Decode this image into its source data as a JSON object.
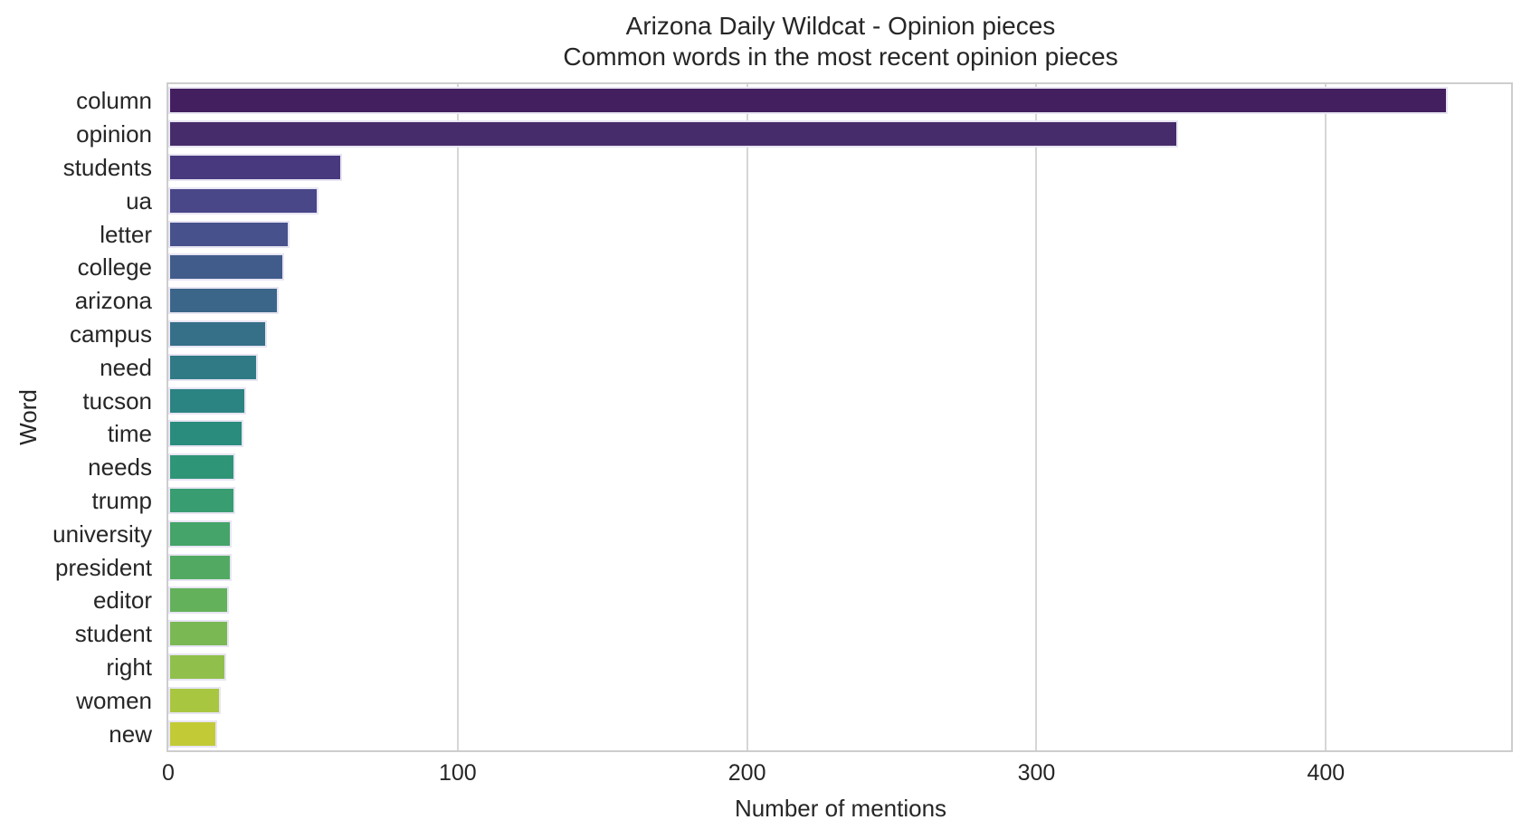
{
  "chart_data": {
    "type": "bar",
    "orientation": "horizontal",
    "title": "Arizona Daily Wildcat - Opinion pieces",
    "subtitle": "Common words in the most recent opinion pieces",
    "xlabel": "Number of mentions",
    "ylabel": "Word",
    "categories": [
      "column",
      "opinion",
      "students",
      "ua",
      "letter",
      "college",
      "arizona",
      "campus",
      "need",
      "tucson",
      "time",
      "needs",
      "trump",
      "university",
      "president",
      "editor",
      "student",
      "right",
      "women",
      "new"
    ],
    "values": [
      442,
      349,
      60,
      52,
      42,
      40,
      38,
      34,
      31,
      27,
      26,
      23,
      23,
      22,
      22,
      21,
      21,
      20,
      18,
      17
    ],
    "bar_colors": [
      "#441f60",
      "#472c6b",
      "#48397e",
      "#494788",
      "#47528c",
      "#415c8b",
      "#3b668a",
      "#357088",
      "#2f7a85",
      "#2b8382",
      "#2a8c7d",
      "#2f9577",
      "#389d70",
      "#44a469",
      "#52aa62",
      "#64b15b",
      "#7ab854",
      "#90c04b",
      "#a9c641",
      "#c2cb36"
    ],
    "xticks": [
      0,
      100,
      200,
      300,
      400
    ],
    "xlim": [
      0,
      464
    ],
    "grid": "vertical-only",
    "legend": "none",
    "palette": "viridis"
  },
  "style": {
    "background": "#ffffff",
    "text_color": "#262626",
    "grid_color": "#d6d6d6",
    "plot_border_color": "#cdcdcd",
    "bar_edge_color": "#e8e5f3"
  }
}
